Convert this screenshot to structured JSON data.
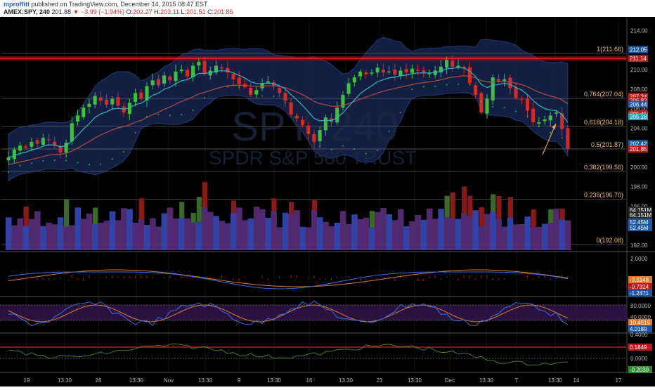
{
  "header": {
    "author": "mproffitt",
    "published": "published on TradingView.com, December 14, 2015 08:47 EST",
    "symbol": "AMEX:SPY, 240",
    "last": "201.88",
    "change": "▼ −3.99 (−1.94%)",
    "o_label": "O:",
    "o": "202.27",
    "h_label": "H:",
    "h": "203.11",
    "l_label": "L:",
    "l": "201.51",
    "c_label": "C:",
    "c": "201.85"
  },
  "watermark": {
    "symbol": "SPY, 240",
    "name": "SPDR S&P 500 TRUST"
  },
  "colors": {
    "background": "#000000",
    "up": "#3fbf3f",
    "down": "#d42a2a",
    "bb_fill": "#14234a",
    "ema_fast": "#2fb3c4",
    "ema_slow": "#b44a3a",
    "fib": "#5a5a5a",
    "resistance": "#cc1111",
    "arrow": "#e8a050"
  },
  "chart_data": [
    {
      "type": "candlestick",
      "ylim": [
        191.0,
        215.0
      ],
      "y_ticks": [
        "214.00",
        "212.00",
        "210.00",
        "208.00",
        "206.00",
        "204.00",
        "202.00",
        "200.00",
        "198.00",
        "196.00",
        "194.00",
        "192.00"
      ],
      "x_ticks": [
        "19",
        "13:30",
        "26",
        "13:30",
        "Nov",
        "13:30",
        "9",
        "13:30",
        "16",
        "13:30",
        "23",
        "13:30",
        "Dec",
        "13:30",
        "7",
        "13:30",
        "14",
        "17"
      ],
      "close": [
        201.0,
        201.8,
        202.2,
        202.0,
        202.6,
        202.4,
        203.0,
        202.8,
        202.2,
        201.5,
        202.5,
        204.5,
        205.3,
        206.1,
        206.5,
        207.3,
        206.8,
        206.4,
        207.0,
        206.3,
        205.6,
        206.6,
        207.6,
        207.0,
        208.3,
        208.9,
        208.4,
        209.4,
        208.9,
        209.8,
        210.0,
        209.3,
        210.4,
        210.8,
        209.6,
        209.9,
        210.4,
        210.1,
        209.7,
        209.0,
        208.5,
        208.2,
        207.4,
        207.9,
        208.6,
        208.8,
        208.3,
        207.6,
        206.8,
        205.4,
        205.0,
        204.3,
        203.4,
        202.6,
        203.8,
        205.1,
        204.6,
        206.1,
        207.4,
        208.6,
        209.2,
        209.8,
        209.5,
        209.7,
        210.2,
        209.7,
        209.8,
        209.5,
        209.9,
        209.7,
        210.1,
        209.9,
        209.7,
        209.6,
        209.9,
        210.3,
        211.0,
        210.3,
        210.4,
        210.1,
        208.6,
        207.4,
        205.6,
        207.0,
        209.2,
        208.8,
        209.0,
        208.1,
        207.1,
        206.9,
        205.8,
        204.6,
        204.6,
        204.9,
        205.3,
        205.6,
        203.9,
        201.9
      ],
      "annotations": [
        "1(211.66)",
        "0.764(207.04)",
        "0.618(204.18)",
        "0.5(201.87)",
        "0.382(199.56)",
        "0.236(196.70)",
        "0(192.08)"
      ],
      "fib_levels": [
        211.66,
        207.04,
        204.18,
        201.87,
        199.56,
        196.7,
        192.08
      ],
      "resistance": 211.14,
      "price_tags": [
        {
          "text": "212.05",
          "value": 212.05,
          "color": "#1c57a5"
        },
        {
          "text": "211.14",
          "value": 211.14,
          "color": "#c0181d"
        },
        {
          "text": "207.24",
          "value": 207.24,
          "color": "#c0181d"
        },
        {
          "text": "206.82",
          "value": 206.82,
          "color": "#c0181d"
        },
        {
          "text": "206.44",
          "value": 206.44,
          "color": "#1c57a5"
        },
        {
          "text": "205.45",
          "value": 205.45,
          "color": "#c0181d"
        },
        {
          "text": "205.18",
          "value": 205.18,
          "color": "#1fa5b0"
        },
        {
          "text": "202.42",
          "value": 202.42,
          "color": "#1c57a5"
        },
        {
          "text": "201.85",
          "value": 201.85,
          "color": "#c0181d"
        }
      ],
      "volume_tags": [
        {
          "text": "64.151M",
          "color": "#2a2a2a"
        },
        {
          "text": "64.151M",
          "color": "#2a2a2a"
        },
        {
          "text": "52.45M",
          "color": "#1c57a5"
        },
        {
          "text": "52.45M",
          "color": "#1c57a5"
        }
      ]
    },
    {
      "type": "line",
      "name": "macd",
      "y_ticks": [
        "2.0000"
      ],
      "tags": [
        {
          "text": "-0.5148",
          "color": "#e07a2a"
        },
        {
          "text": "-0.7324",
          "color": "#c0181d"
        },
        {
          "text": "-1.2471",
          "color": "#1c57a5"
        }
      ]
    },
    {
      "type": "line",
      "name": "stochastic",
      "y_ticks": [
        "80.0000",
        "40.0000"
      ],
      "tags": [
        {
          "text": "10.4515",
          "color": "#e07a2a"
        },
        {
          "text": "4.0189",
          "color": "#1c57a5"
        }
      ]
    },
    {
      "type": "line",
      "name": "oscillator",
      "y_ticks": [
        "0.4000",
        "0.0000"
      ],
      "tags": [
        {
          "text": "0.1849",
          "color": "#c0181d"
        },
        {
          "text": "-0.2039",
          "color": "#2e8b2e"
        }
      ]
    }
  ]
}
